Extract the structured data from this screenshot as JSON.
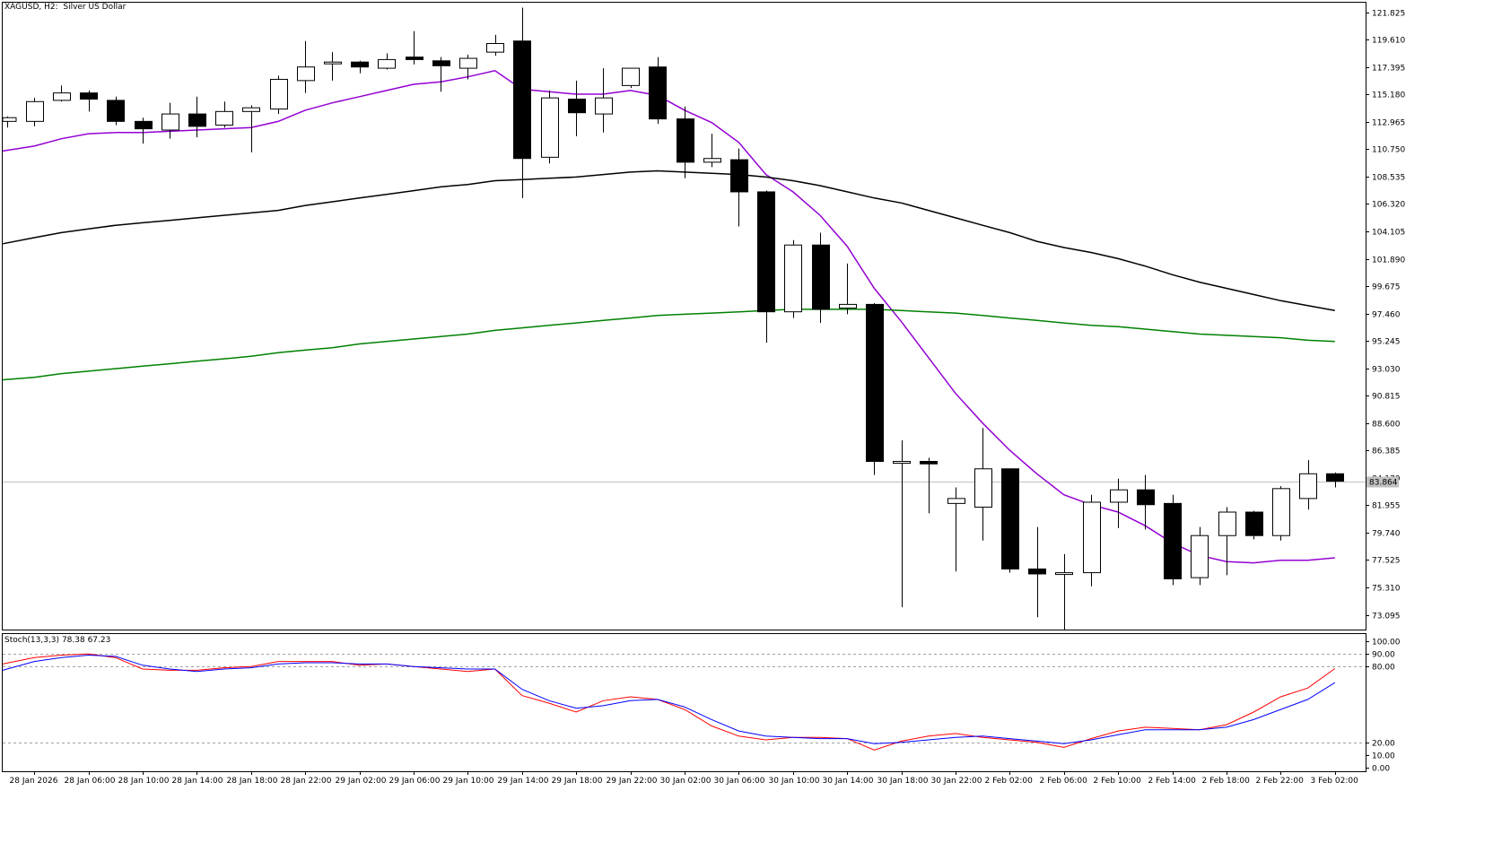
{
  "header": {
    "symbol": "XAGUSD, H2:",
    "description": "Silver US Dollar"
  },
  "indicator": {
    "label": "Stoch(13,3,3)",
    "value_main": "78.38",
    "value_signal": "67.23"
  },
  "current_price_label": "83.864",
  "colors": {
    "background": "#ffffff",
    "bull_body": "#ffffff",
    "bear_body": "#000000",
    "candle_outline": "#000000",
    "ma_fast": "#9400d3",
    "ma_mid": "#000000",
    "ma_slow": "#008000",
    "stoch_main": "#ff0000",
    "stoch_signal": "#0000ff",
    "level_lines": "#a0a0a0"
  },
  "chart_data": [
    {
      "type": "candlestick",
      "title": "XAGUSD, H2:  Silver US Dollar",
      "y_ticks": [
        "121.825",
        "119.610",
        "117.395",
        "115.180",
        "112.965",
        "110.750",
        "108.535",
        "106.320",
        "104.105",
        "101.890",
        "99.675",
        "97.460",
        "95.245",
        "93.030",
        "90.815",
        "88.600",
        "86.385",
        "84.170",
        "81.955",
        "79.740",
        "77.525",
        "75.310",
        "73.095"
      ],
      "ylim": [
        71.9,
        122.6
      ],
      "x_labels": [
        {
          "i": 1,
          "label": "28 Jan 2026"
        },
        {
          "i": 3,
          "label": "28 Jan 06:00"
        },
        {
          "i": 5,
          "label": "28 Jan 10:00"
        },
        {
          "i": 7,
          "label": "28 Jan 14:00"
        },
        {
          "i": 9,
          "label": "28 Jan 18:00"
        },
        {
          "i": 11,
          "label": "28 Jan 22:00"
        },
        {
          "i": 13,
          "label": "29 Jan 02:00"
        },
        {
          "i": 15,
          "label": "29 Jan 06:00"
        },
        {
          "i": 17,
          "label": "29 Jan 10:00"
        },
        {
          "i": 19,
          "label": "29 Jan 14:00"
        },
        {
          "i": 21,
          "label": "29 Jan 18:00"
        },
        {
          "i": 23,
          "label": "29 Jan 22:00"
        },
        {
          "i": 25,
          "label": "30 Jan 02:00"
        },
        {
          "i": 27,
          "label": "30 Jan 06:00"
        },
        {
          "i": 29,
          "label": "30 Jan 10:00"
        },
        {
          "i": 31,
          "label": "30 Jan 14:00"
        },
        {
          "i": 33,
          "label": "30 Jan 18:00"
        },
        {
          "i": 35,
          "label": "30 Jan 22:00"
        },
        {
          "i": 37,
          "label": "2 Feb 02:00"
        },
        {
          "i": 39,
          "label": "2 Feb 06:00"
        },
        {
          "i": 41,
          "label": "2 Feb 10:00"
        },
        {
          "i": 43,
          "label": "2 Feb 14:00"
        },
        {
          "i": 45,
          "label": "2 Feb 18:00"
        },
        {
          "i": 47,
          "label": "2 Feb 22:00"
        },
        {
          "i": 49,
          "label": "3 Feb 02:00"
        }
      ],
      "ohlc": [
        [
          113.0,
          113.4,
          112.5,
          113.3
        ],
        [
          113.0,
          114.9,
          112.6,
          114.6
        ],
        [
          114.7,
          115.9,
          114.6,
          115.3
        ],
        [
          115.3,
          115.5,
          113.8,
          114.8
        ],
        [
          114.7,
          115.0,
          112.7,
          113.0
        ],
        [
          113.0,
          113.3,
          111.2,
          112.4
        ],
        [
          112.3,
          114.5,
          111.6,
          113.6
        ],
        [
          113.6,
          115.0,
          111.7,
          112.6
        ],
        [
          112.7,
          114.6,
          112.5,
          113.8
        ],
        [
          113.8,
          114.3,
          110.5,
          114.1
        ],
        [
          114.0,
          116.7,
          113.6,
          116.4
        ],
        [
          116.3,
          119.5,
          115.3,
          117.4
        ],
        [
          117.7,
          118.6,
          116.3,
          117.8
        ],
        [
          117.8,
          117.9,
          116.9,
          117.4
        ],
        [
          117.3,
          118.5,
          117.2,
          118.0
        ],
        [
          118.2,
          120.3,
          117.6,
          118.0
        ],
        [
          117.9,
          118.2,
          115.4,
          117.5
        ],
        [
          117.3,
          118.4,
          116.4,
          118.1
        ],
        [
          118.6,
          120.0,
          118.3,
          119.3
        ],
        [
          119.5,
          122.2,
          106.8,
          110.0
        ],
        [
          110.1,
          115.5,
          109.6,
          114.9
        ],
        [
          114.8,
          116.3,
          111.8,
          113.7
        ],
        [
          113.6,
          117.3,
          112.1,
          114.9
        ],
        [
          115.9,
          117.3,
          115.7,
          117.3
        ],
        [
          117.4,
          118.2,
          112.8,
          113.2
        ],
        [
          113.2,
          114.2,
          108.4,
          109.7
        ],
        [
          109.7,
          112.0,
          109.3,
          110.0
        ],
        [
          109.9,
          110.8,
          104.5,
          107.3
        ],
        [
          107.3,
          107.4,
          95.1,
          97.6
        ],
        [
          97.6,
          103.4,
          97.1,
          103.0
        ],
        [
          103.0,
          104.0,
          96.7,
          97.8
        ],
        [
          97.9,
          101.5,
          97.4,
          98.2
        ],
        [
          98.2,
          98.3,
          84.4,
          85.5
        ],
        [
          85.5,
          87.2,
          73.7,
          85.5
        ],
        [
          85.5,
          85.8,
          81.3,
          85.3
        ],
        [
          82.1,
          83.4,
          76.6,
          82.5
        ],
        [
          81.8,
          88.2,
          79.1,
          84.9
        ],
        [
          84.9,
          84.9,
          76.5,
          76.8
        ],
        [
          76.8,
          80.2,
          72.9,
          76.4
        ],
        [
          76.4,
          78.0,
          71.9,
          76.5
        ],
        [
          76.5,
          82.8,
          75.4,
          82.2
        ],
        [
          82.2,
          84.1,
          80.1,
          83.2
        ],
        [
          83.2,
          84.4,
          80.0,
          82.0
        ],
        [
          82.1,
          82.8,
          75.5,
          76.0
        ],
        [
          76.1,
          80.2,
          75.5,
          79.5
        ],
        [
          79.5,
          81.8,
          76.3,
          81.4
        ],
        [
          81.4,
          81.5,
          79.2,
          79.5
        ],
        [
          79.5,
          83.5,
          79.1,
          83.3
        ],
        [
          82.5,
          85.6,
          81.6,
          84.5
        ],
        [
          84.5,
          84.6,
          83.4,
          83.9
        ]
      ],
      "series": [
        {
          "values": [
            110.6,
            111.0,
            111.6,
            112.0,
            112.1,
            112.1,
            112.2,
            112.3,
            112.4,
            112.5,
            113.0,
            113.9,
            114.5,
            115.0,
            115.5,
            116.0,
            116.2,
            116.6,
            117.1,
            115.6,
            115.4,
            115.2,
            115.2,
            115.5,
            115.1,
            113.9,
            112.9,
            111.3,
            108.7,
            107.3,
            105.4,
            102.9,
            99.5,
            96.8,
            93.9,
            91.0,
            88.6,
            86.4,
            84.5,
            82.8,
            82.0,
            81.4,
            80.3,
            78.9,
            77.9,
            77.4,
            77.3,
            77.5,
            77.5,
            77.7
          ]
        },
        {
          "values": [
            103.1,
            103.6,
            104.0,
            104.3,
            104.6,
            104.8,
            105.0,
            105.2,
            105.4,
            105.6,
            105.8,
            106.2,
            106.5,
            106.8,
            107.1,
            107.4,
            107.7,
            107.9,
            108.2,
            108.3,
            108.4,
            108.5,
            108.7,
            108.9,
            109.0,
            108.9,
            108.8,
            108.7,
            108.5,
            108.2,
            107.8,
            107.3,
            106.8,
            106.4,
            105.8,
            105.2,
            104.6,
            104.0,
            103.3,
            102.8,
            102.4,
            101.9,
            101.3,
            100.6,
            100.0,
            99.5,
            99.0,
            98.5,
            98.1,
            97.7
          ]
        },
        {
          "values": [
            92.1,
            92.3,
            92.6,
            92.8,
            93.0,
            93.2,
            93.4,
            93.6,
            93.8,
            94.0,
            94.3,
            94.5,
            94.7,
            95.0,
            95.2,
            95.4,
            95.6,
            95.8,
            96.1,
            96.3,
            96.5,
            96.7,
            96.9,
            97.1,
            97.3,
            97.4,
            97.5,
            97.6,
            97.7,
            97.8,
            97.8,
            97.8,
            97.8,
            97.7,
            97.6,
            97.5,
            97.3,
            97.1,
            96.9,
            96.7,
            96.5,
            96.4,
            96.2,
            96.0,
            95.8,
            95.7,
            95.6,
            95.5,
            95.3,
            95.2
          ]
        }
      ]
    },
    {
      "type": "line",
      "title": "Stoch(13,3,3) 78.38 67.23",
      "y_ticks": [
        "100.00",
        "90.00",
        "80.00",
        "20.00",
        "10.00",
        "0.00"
      ],
      "levels": [
        20,
        80
      ],
      "ylim": [
        0,
        100
      ],
      "series": [
        {
          "values": [
            82,
            87,
            89,
            90,
            87,
            78,
            77,
            77,
            79,
            80,
            84,
            84,
            84,
            81,
            82,
            80,
            78,
            76,
            78,
            57,
            51,
            44,
            53,
            56,
            54,
            46,
            33,
            25,
            22,
            24,
            24,
            23,
            14,
            21,
            25,
            27,
            24,
            22,
            20,
            16,
            23,
            29,
            32,
            31,
            30,
            34,
            44,
            56,
            63,
            78.38
          ]
        },
        {
          "values": [
            77,
            84,
            87,
            89,
            88,
            81,
            78,
            76,
            78,
            79,
            82,
            83,
            83,
            82,
            82,
            80,
            79,
            78,
            78,
            62,
            53,
            47,
            49,
            53,
            54,
            48,
            38,
            29,
            25,
            24,
            23,
            23,
            19,
            20,
            22,
            24,
            25,
            23,
            21,
            19,
            22,
            26,
            30,
            30,
            30,
            32,
            38,
            46,
            54,
            67.23
          ]
        }
      ]
    }
  ]
}
